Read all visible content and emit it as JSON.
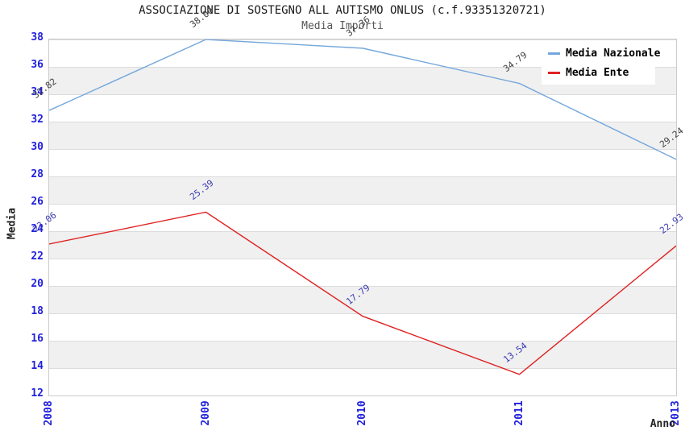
{
  "header": {
    "title": "ASSOCIAZIONE DI SOSTEGNO ALL AUTISMO ONLUS (c.f.93351320721)",
    "subtitle": "Media Importi"
  },
  "chart_data": {
    "type": "line",
    "title": "ASSOCIAZIONE DI SOSTEGNO ALL AUTISMO ONLUS (c.f.93351320721)",
    "subtitle": "Media Importi",
    "categories": [
      "2008",
      "2009",
      "2010",
      "2011",
      "2013"
    ],
    "series": [
      {
        "name": "Media Nazionale",
        "color": "#74a7dc",
        "label_color": "#3f3f3f",
        "values": [
          32.82,
          38.0,
          37.36,
          34.79,
          29.24
        ],
        "labels": [
          "32.82",
          "38.00",
          "37.36",
          "34.79",
          "29.24"
        ]
      },
      {
        "name": "Media Ente",
        "color": "#e02222",
        "label_color": "#3a3ab4",
        "values": [
          23.06,
          25.39,
          17.79,
          13.54,
          22.93
        ],
        "labels": [
          "23.06",
          "25.39",
          "17.79",
          "13.54",
          "22.93"
        ]
      }
    ],
    "xlabel": "Anno",
    "ylabel": "Media",
    "ylim": [
      12,
      38
    ],
    "yticks": [
      12,
      14,
      16,
      18,
      20,
      22,
      24,
      26,
      28,
      30,
      32,
      34,
      36,
      38
    ],
    "grid": "horizontal-bands",
    "band_color": "#f0f0f0",
    "gridline_color": "#dcdcdc",
    "tick_label_color": "#2020dd",
    "legend_position": "top-right"
  }
}
